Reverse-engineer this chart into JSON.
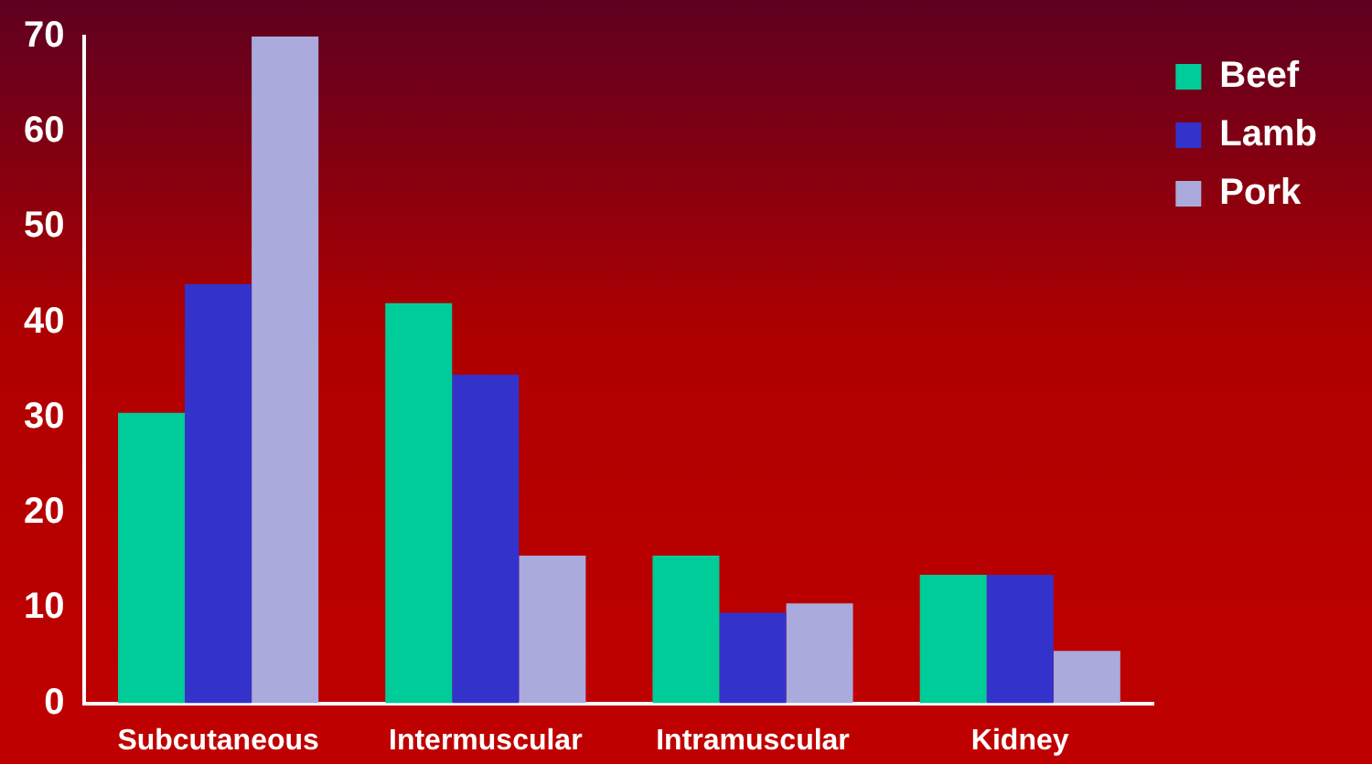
{
  "chart_data": {
    "type": "bar",
    "categories": [
      "Subcutaneous",
      "Intermuscular",
      "Intramuscular",
      "Kidney"
    ],
    "series": [
      {
        "name": "Beef",
        "color": "#00cc99",
        "values": [
          30.5,
          42,
          15.5,
          13.5
        ]
      },
      {
        "name": "Lamb",
        "color": "#3333cc",
        "values": [
          44,
          34.5,
          9.5,
          13.5
        ]
      },
      {
        "name": "Pork",
        "color": "#aaaadd",
        "values": [
          70,
          15.5,
          10.5,
          5.5
        ]
      }
    ],
    "ylim": [
      0,
      70
    ],
    "yticks": [
      0,
      10,
      20,
      30,
      40,
      50,
      60,
      70
    ],
    "grid": false,
    "legend": "top right"
  }
}
